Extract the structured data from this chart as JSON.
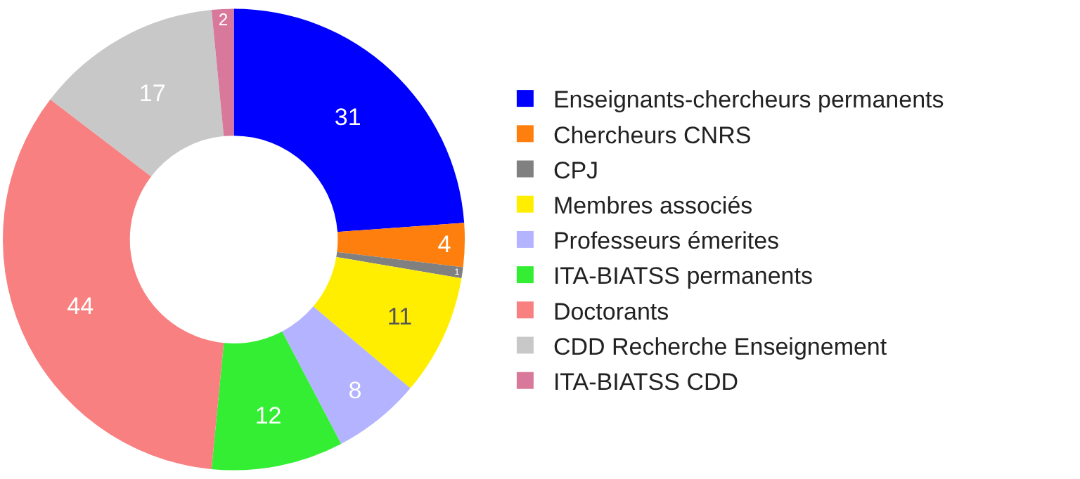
{
  "chart_data": {
    "type": "donut",
    "categories": [
      "Enseignants-chercheurs permanents",
      "Chercheurs CNRS",
      "CPJ",
      "Membres associés",
      "Professeurs émerites",
      "ITA-BIATSS permanents",
      "Doctorants",
      "CDD Recherche Enseignement",
      "ITA-BIATSS CDD"
    ],
    "values": [
      31,
      4,
      1,
      11,
      8,
      12,
      44,
      17,
      2
    ],
    "colors": [
      "#0000ff",
      "#ff7f0e",
      "#808080",
      "#ffee00",
      "#b3b3ff",
      "#33ee33",
      "#f88080",
      "#c8c8c8",
      "#d8789a"
    ],
    "data_labels": true,
    "legend": "right"
  }
}
